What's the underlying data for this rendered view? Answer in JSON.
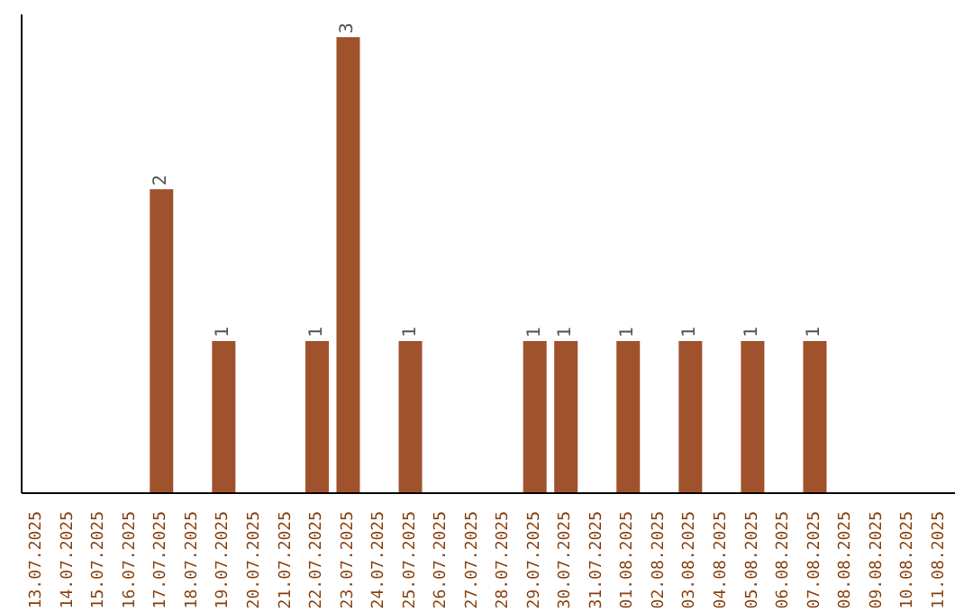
{
  "chart_data": {
    "type": "bar",
    "categories": [
      "13.07.2025",
      "14.07.2025",
      "15.07.2025",
      "16.07.2025",
      "17.07.2025",
      "18.07.2025",
      "19.07.2025",
      "20.07.2025",
      "21.07.2025",
      "22.07.2025",
      "23.07.2025",
      "24.07.2025",
      "25.07.2025",
      "26.07.2025",
      "27.07.2025",
      "28.07.2025",
      "29.07.2025",
      "30.07.2025",
      "31.07.2025",
      "01.08.2025",
      "02.08.2025",
      "03.08.2025",
      "04.08.2025",
      "05.08.2025",
      "06.08.2025",
      "07.08.2025",
      "08.08.2025",
      "09.08.2025",
      "10.08.2025",
      "11.08.2025"
    ],
    "values": [
      0,
      0,
      0,
      0,
      2,
      0,
      1,
      0,
      0,
      1,
      3,
      0,
      1,
      0,
      0,
      0,
      1,
      1,
      0,
      1,
      0,
      1,
      0,
      1,
      0,
      1,
      0,
      0,
      0,
      0
    ],
    "value_labels": [
      null,
      null,
      null,
      null,
      "2",
      null,
      "1",
      null,
      null,
      "1",
      "3",
      null,
      "1",
      null,
      null,
      null,
      "1",
      "1",
      null,
      "1",
      null,
      "1",
      null,
      "1",
      null,
      "1",
      null,
      null,
      null,
      null
    ],
    "color": "#a0522d",
    "ylim": [
      0,
      3.15
    ],
    "tick_labels": "x",
    "grid": false
  }
}
